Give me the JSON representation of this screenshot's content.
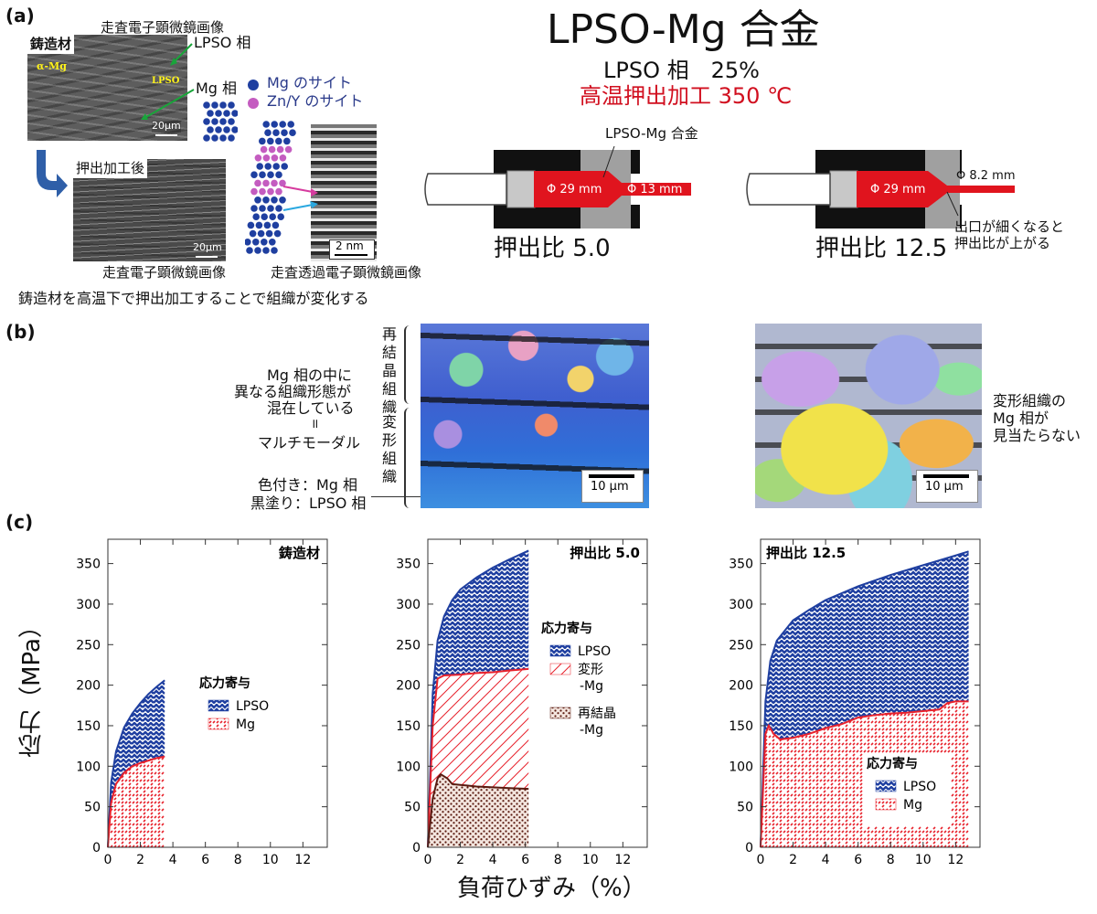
{
  "panel_labels": {
    "a": "(a)",
    "b": "(b)",
    "c": "(c)"
  },
  "panel_a": {
    "title": "LPSO-Mg 合金",
    "lpso_fraction": "LPSO 相　25%",
    "extrusion_condition": "高温押出加工 350 ℃",
    "sem_top_caption": "走査電子顕微鏡画像",
    "cast_label": "鋳造材",
    "lpso_phase_label": "LPSO 相",
    "mg_phase_label": "Mg 相",
    "alpha_mg_label": "α-Mg",
    "lpso_inset_label": "LPSO",
    "scale_20um_top": "20μm",
    "after_extrusion_label": "押出加工後",
    "scale_20um_bottom": "20μm",
    "sem_bottom_caption": "走査電子顕微鏡画像",
    "legend_mg_site": "Mg のサイト",
    "legend_zny_site": "Zn/Y のサイト",
    "scale_2nm": "2 nm",
    "stem_caption": "走査透過電子顕微鏡画像",
    "summary_sentence": "鋳造材を高温下で押出加工することで組織が変化する",
    "die_material_label": "LPSO-Mg 合金",
    "die1_in": "Φ 29 mm",
    "die1_out": "Φ 13 mm",
    "die1_ratio": "押出比 5.0",
    "die2_in": "Φ 29 mm",
    "die2_out": "Φ 8.2 mm",
    "die2_ratio": "押出比 12.5",
    "die2_note_line1": "出口が細くなると",
    "die2_note_line2": "押出比が上がる",
    "colors": {
      "mg_site": "#1f3fa0",
      "zny_site": "#c45cc0",
      "red": "#d10f1f",
      "die": "#e0141e"
    }
  },
  "panel_b": {
    "recrystallized_label": "再結晶組織",
    "deformed_label": "変形組織",
    "left_note_line1": "Mg 相の中に",
    "left_note_line2": "異なる組織形態が",
    "left_note_line3": "混在している",
    "left_note_line4": "॥",
    "left_note_line5": "マルチモーダル",
    "legend_line1": "色付き：Mg 相",
    "legend_line2": "黒塗り：LPSO 相",
    "scale_left": "10 µm",
    "scale_right": "10 µm",
    "right_note_line1": "変形組織の",
    "right_note_line2": "Mg 相が",
    "right_note_line3": "見当たらない"
  },
  "panel_c": {
    "y_axis_label": "応力（MPa）",
    "x_axis_label": "負荷ひずみ（%）"
  },
  "chart_data": [
    {
      "type": "area",
      "title": "鋳造材",
      "xlim": [
        0,
        13.5
      ],
      "ylim": [
        0,
        380
      ],
      "xticks": [
        0,
        2,
        4,
        6,
        8,
        10,
        12
      ],
      "yticks": [
        0,
        50,
        100,
        150,
        200,
        250,
        300,
        350
      ],
      "legend_title": "応力寄与",
      "series": [
        {
          "name": "LPSO",
          "color": "#1f3fa0",
          "x": [
            0,
            0.2,
            0.5,
            1.0,
            1.5,
            2.0,
            2.5,
            3.0,
            3.5
          ],
          "y": [
            0,
            80,
            118,
            148,
            165,
            178,
            189,
            198,
            206
          ]
        },
        {
          "name": "Mg",
          "color": "#e8222c",
          "x": [
            0,
            0.2,
            0.5,
            1.0,
            1.5,
            2.0,
            2.5,
            3.0,
            3.5
          ],
          "y": [
            0,
            55,
            78,
            92,
            100,
            104,
            107,
            110,
            112
          ]
        }
      ]
    },
    {
      "type": "area",
      "title": "押出比 5.0",
      "xlim": [
        0,
        13.5
      ],
      "ylim": [
        0,
        380
      ],
      "xticks": [
        0,
        2,
        4,
        6,
        8,
        10,
        12
      ],
      "yticks": [
        0,
        50,
        100,
        150,
        200,
        250,
        300,
        350
      ],
      "legend_title": "応力寄与",
      "series": [
        {
          "name": "LPSO",
          "color": "#1f3fa0",
          "x": [
            0,
            0.3,
            0.6,
            1.0,
            1.5,
            2.0,
            3.0,
            4.0,
            5.0,
            6.2
          ],
          "y": [
            0,
            190,
            255,
            285,
            305,
            318,
            333,
            345,
            355,
            366
          ]
        },
        {
          "name": "変形 -Mg",
          "color": "#e8222c",
          "x": [
            0,
            0.3,
            0.6,
            1.0,
            2.0,
            3.0,
            4.0,
            5.0,
            6.2
          ],
          "y": [
            0,
            150,
            208,
            212,
            213,
            215,
            216,
            218,
            220
          ]
        },
        {
          "name": "再結晶 -Mg",
          "color": "#5a1a10",
          "x": [
            0,
            0.3,
            0.6,
            0.8,
            1.2,
            1.5,
            2.0,
            3.0,
            4.0,
            5.0,
            6.2
          ],
          "y": [
            0,
            60,
            85,
            90,
            85,
            78,
            77,
            75,
            74,
            73,
            72
          ]
        }
      ]
    },
    {
      "type": "area",
      "title": "押出比 12.5",
      "xlim": [
        0,
        13.5
      ],
      "ylim": [
        0,
        380
      ],
      "xticks": [
        0,
        2,
        4,
        6,
        8,
        10,
        12
      ],
      "yticks": [
        0,
        50,
        100,
        150,
        200,
        250,
        300,
        350
      ],
      "legend_title": "応力寄与",
      "series": [
        {
          "name": "LPSO",
          "color": "#1f3fa0",
          "x": [
            0,
            0.3,
            0.6,
            1.0,
            2.0,
            3.0,
            4.0,
            6.0,
            8.0,
            10.0,
            12.0,
            12.8
          ],
          "y": [
            0,
            180,
            230,
            255,
            280,
            293,
            305,
            322,
            336,
            348,
            360,
            365
          ]
        },
        {
          "name": "Mg",
          "color": "#e8222c",
          "x": [
            0,
            0.3,
            0.5,
            0.8,
            1.2,
            2.0,
            3.0,
            4.0,
            5.0,
            6.0,
            7.0,
            8.0,
            9.0,
            10.0,
            11.0,
            11.5,
            12.0,
            12.8
          ],
          "y": [
            0,
            140,
            150,
            140,
            133,
            135,
            140,
            147,
            152,
            160,
            163,
            165,
            166,
            168,
            170,
            178,
            180,
            180
          ]
        }
      ]
    }
  ]
}
